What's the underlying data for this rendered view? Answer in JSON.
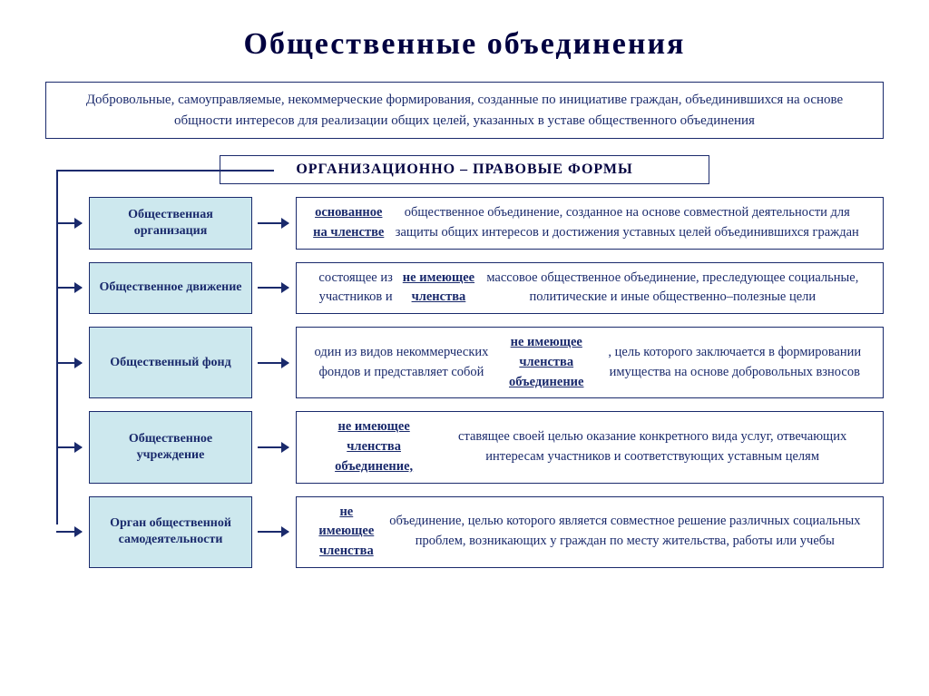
{
  "title": "Общественные  объединения",
  "definition": "Добровольные,  самоуправляемые,  некоммерческие  формирования,  созданные по  инициативе  граждан,  объединившихся  на  основе  общности  интересов  для реализации  общих  целей,  указанных  в  уставе  общественного  объединения",
  "formsHeader": "ОРГАНИЗАЦИОННО – ПРАВОВЫЕ   ФОРМЫ",
  "colors": {
    "border": "#1a2a6c",
    "text": "#1a2a6c",
    "titleText": "#000040",
    "labelBg": "#cde8ee",
    "pageBg": "#ffffff"
  },
  "typography": {
    "titleSize": 34,
    "bodySize": 15,
    "labelSize": 14,
    "fontFamily": "Times New Roman"
  },
  "items": [
    {
      "label": "Общественная организация",
      "descHtml": "<b><u>основанное  на  членстве</u></b>  общественное  объединение,  созданное  на основе  совместной  деятельности  для  защиты  общих  интересов  и достижения  уставных  целей  объединившихся  граждан"
    },
    {
      "label": "Общественное движение",
      "descHtml": "состоящее из участников и <b><u>не имеющее членства </u></b> массовое общественное  объединение,  преследующее  социальные, политические  и иные  общественно–полезные  цели"
    },
    {
      "label": "Общественный фонд",
      "descHtml": "один из видов некоммерческих фондов и представляет собой  <b><u>не имеющее членства объединение</u></b>,  цель которого  заключается  в формировании имущества на основе добровольных взносов"
    },
    {
      "label": "Общественное учреждение",
      "descHtml": "<b><u>не имеющее членства объединение,</u></b>   ставящее своей целью оказание конкретного вида услуг,   отвечающих  интересам  участников  и соответствующих  уставным  целям"
    },
    {
      "label": "Орган общественной самодеятельности",
      "descHtml": "<b><u>не имеющее членства</u></b> объединение, целью которого является совместное  решение  различных  социальных  проблем,   возникающих у  граждан  по месту  жительства,  работы или учебы"
    }
  ]
}
